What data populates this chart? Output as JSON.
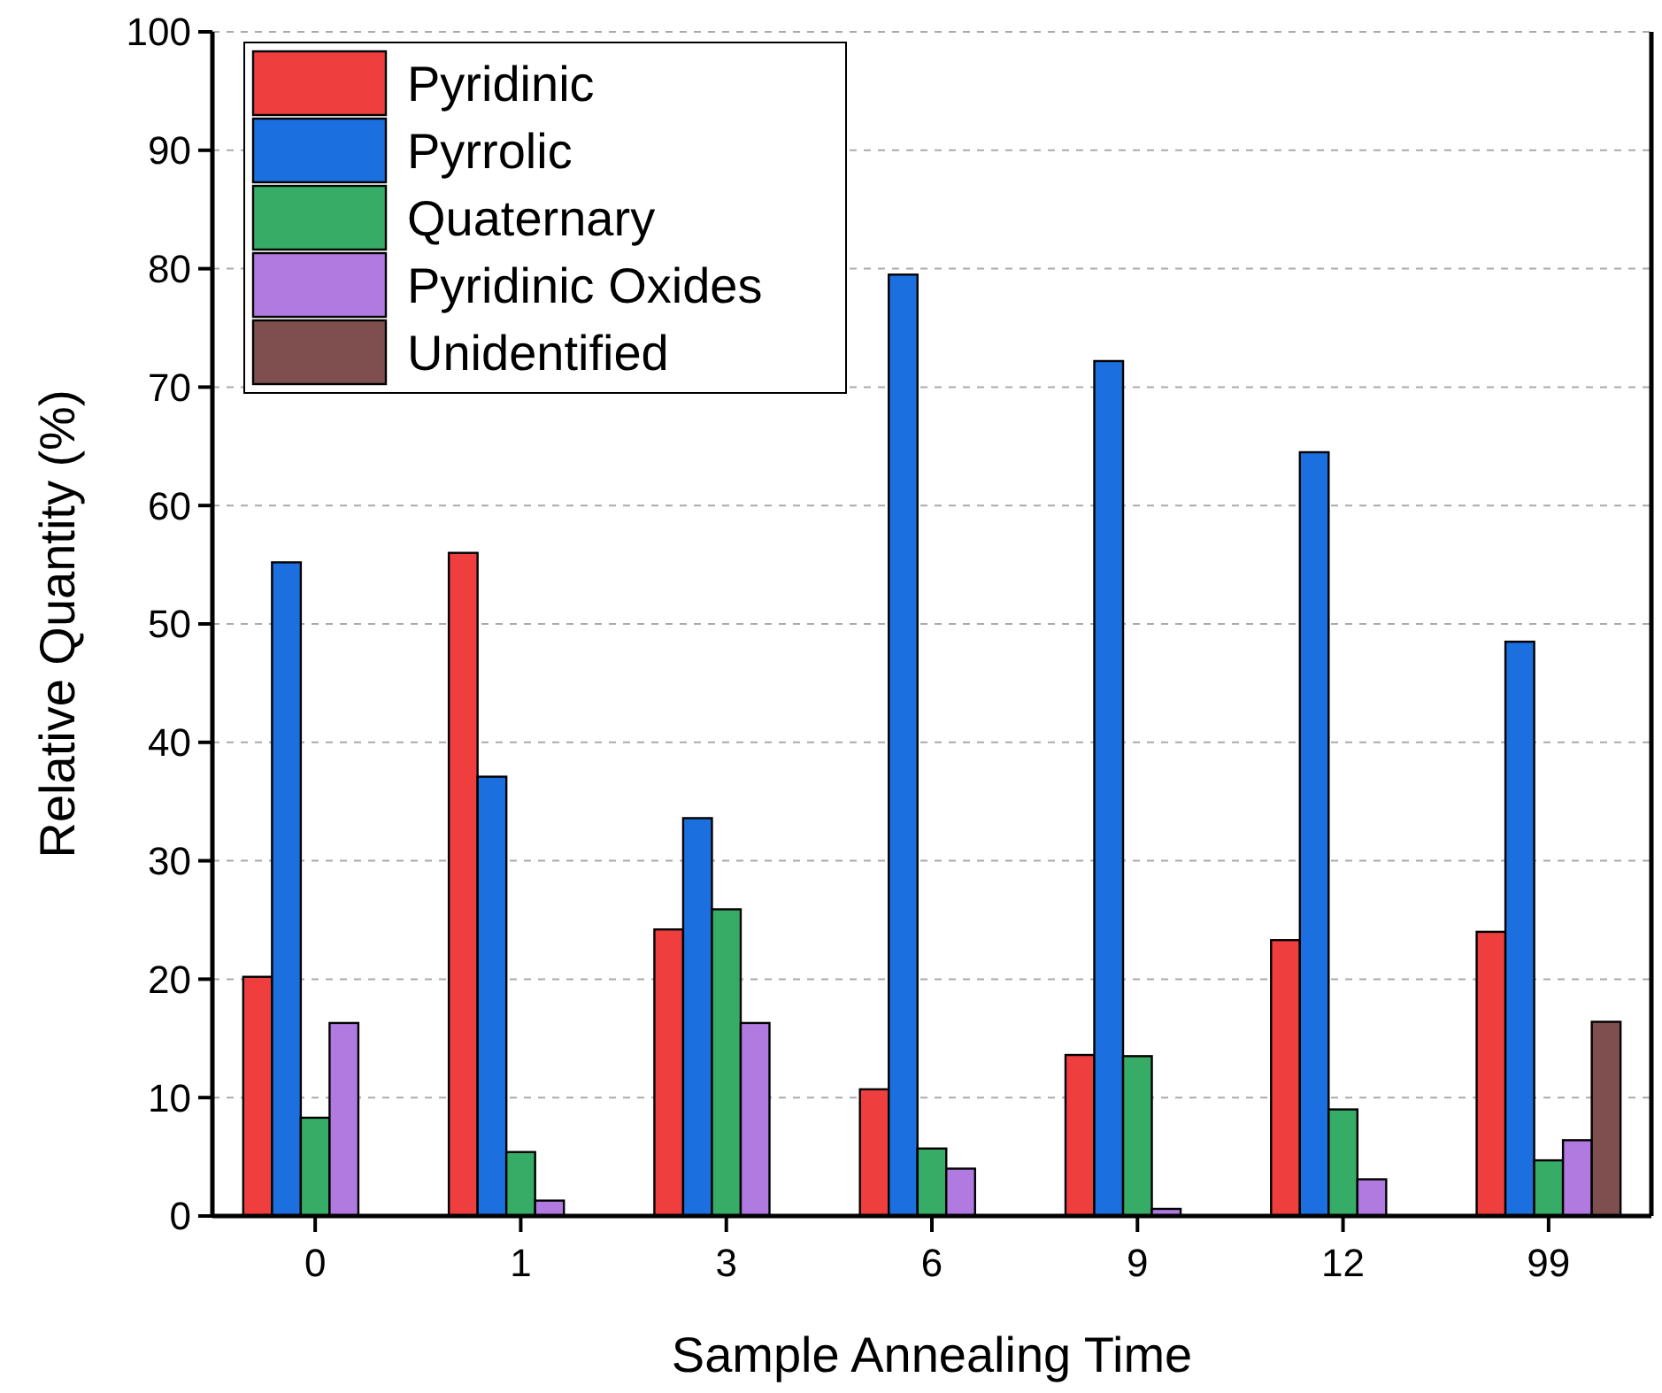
{
  "chart_data": {
    "type": "bar",
    "xlabel": "Sample Annealing Time",
    "ylabel": "Relative Quantity (%)",
    "categories": [
      "0",
      "1",
      "3",
      "6",
      "9",
      "12",
      "99"
    ],
    "series": [
      {
        "name": "Pyridinic",
        "color": "#ef3e3e",
        "values": [
          20.2,
          56.0,
          24.2,
          10.7,
          13.6,
          23.3,
          24.0
        ]
      },
      {
        "name": "Pyrrolic",
        "color": "#1b6fdf",
        "values": [
          55.2,
          37.1,
          33.6,
          79.5,
          72.2,
          64.5,
          48.5
        ]
      },
      {
        "name": "Quaternary",
        "color": "#36ac67",
        "values": [
          8.3,
          5.4,
          25.9,
          5.7,
          13.5,
          9.0,
          4.7
        ]
      },
      {
        "name": "Pyridinic Oxides",
        "color": "#b07ae0",
        "values": [
          16.3,
          1.3,
          16.3,
          4.0,
          0.6,
          3.1,
          6.4
        ]
      },
      {
        "name": "Unidentified",
        "color": "#7f4f4f",
        "values": [
          null,
          null,
          null,
          null,
          null,
          null,
          16.4
        ]
      }
    ],
    "ylim": [
      0,
      100
    ],
    "yticks": [
      0,
      10,
      20,
      30,
      40,
      50,
      60,
      70,
      80,
      90,
      100
    ],
    "grid": "y",
    "legend": "top left"
  }
}
